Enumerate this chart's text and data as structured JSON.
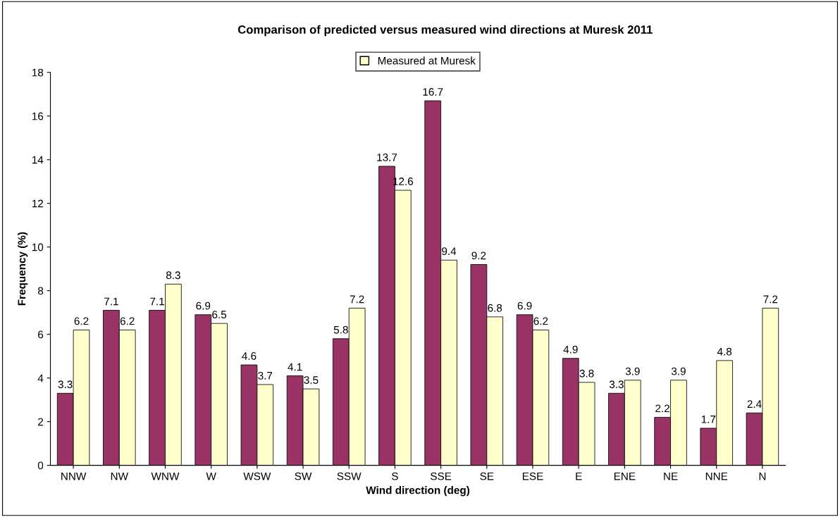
{
  "chart_data": {
    "type": "bar",
    "title": "Comparison of predicted versus measured wind directions at Muresk 2011",
    "xlabel": "Wind direction (deg)",
    "ylabel": "Frequency (%)",
    "categories": [
      "NNW",
      "NW",
      "WNW",
      "W",
      "WSW",
      "SW",
      "SSW",
      "S",
      "SSE",
      "SE",
      "ESE",
      "E",
      "ENE",
      "NE",
      "NNE",
      "N"
    ],
    "series": [
      {
        "color": "#993366",
        "values": [
          3.3,
          7.1,
          7.1,
          6.9,
          4.6,
          4.1,
          5.8,
          13.7,
          16.7,
          9.2,
          6.9,
          4.9,
          3.3,
          2.2,
          1.7,
          2.4
        ]
      },
      {
        "name": "Measured at Muresk",
        "color": "#ffffcc",
        "values": [
          6.2,
          6.2,
          8.3,
          6.5,
          3.7,
          3.5,
          7.2,
          12.6,
          9.4,
          6.8,
          6.2,
          3.8,
          3.9,
          3.9,
          4.8,
          7.2
        ]
      }
    ],
    "ylim": [
      0,
      18
    ],
    "yticks": [
      0,
      2,
      4,
      6,
      8,
      10,
      12,
      14,
      16,
      18
    ],
    "data_labels": true,
    "grid": false,
    "legend": "top"
  }
}
